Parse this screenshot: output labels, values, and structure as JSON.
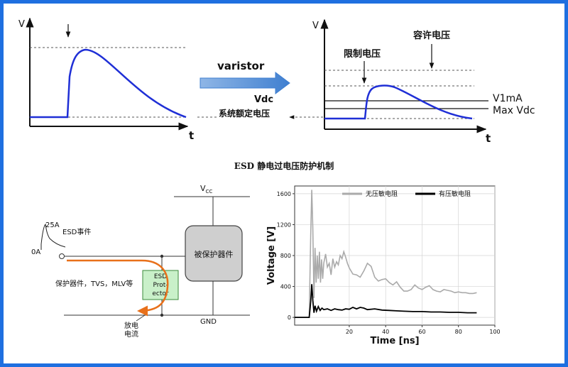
{
  "top_left_plot": {
    "y_axis_label": "V",
    "x_axis_label": "t"
  },
  "transition": {
    "arrow_label": "varistor",
    "vdc_label": "Vdc",
    "rated_voltage_label": "系统额定电压"
  },
  "top_right_plot": {
    "y_axis_label": "V",
    "x_axis_label": "t",
    "allowed_voltage_label": "容许电压",
    "clamp_voltage_label": "限制电压",
    "v1ma_label": "V1mA",
    "max_vdc_label": "Max Vdc"
  },
  "section_title": "ESD 静电过电压防护机制",
  "circuit": {
    "vcc_label": "V",
    "vcc_sub": "CC",
    "gnd_label": "GND",
    "peak_label": "25A",
    "event_label": "ESD事件",
    "zero_label": "0A",
    "protected_device_label": "被保护器件",
    "esd_protector_lines": [
      "ESD",
      "Prot-",
      "ector"
    ],
    "protector_types_label": "保护器件，TVS，MLV等",
    "discharge_lines": [
      "放电",
      "电流"
    ]
  },
  "chart_data": {
    "type": "line",
    "xlabel": "Time [ns]",
    "ylabel": "Voltage [V]",
    "xlim": [
      -10,
      100
    ],
    "ylim": [
      -100,
      1700
    ],
    "xticks": [
      20,
      40,
      60,
      80,
      100
    ],
    "yticks": [
      0,
      400,
      800,
      1200,
      1600
    ],
    "legend_position": "top",
    "series": [
      {
        "name": "无压敏电阻",
        "color": "#aaaaaa",
        "x": [
          -10,
          -2,
          -1.2,
          -0.6,
          0,
          0.6,
          1.2,
          1.8,
          2.4,
          3,
          3.6,
          4.2,
          4.8,
          5.4,
          6,
          7,
          8,
          9,
          10,
          11,
          12,
          13,
          14,
          15,
          16,
          17,
          18,
          19,
          20,
          22,
          24,
          26,
          28,
          30,
          32,
          34,
          36,
          38,
          40,
          42,
          44,
          46,
          48,
          50,
          52,
          54,
          56,
          58,
          60,
          62,
          64,
          66,
          68,
          70,
          72,
          74,
          76,
          78,
          80,
          82,
          84,
          86,
          88,
          90
        ],
        "y": [
          0,
          0,
          1050,
          1650,
          1150,
          250,
          900,
          450,
          800,
          500,
          850,
          450,
          750,
          500,
          700,
          820,
          650,
          700,
          550,
          760,
          650,
          720,
          680,
          800,
          760,
          850,
          780,
          700,
          640,
          560,
          550,
          520,
          600,
          700,
          660,
          520,
          470,
          490,
          500,
          450,
          420,
          460,
          390,
          340,
          340,
          360,
          420,
          380,
          360,
          390,
          410,
          360,
          340,
          330,
          360,
          350,
          340,
          320,
          330,
          320,
          320,
          310,
          310,
          320
        ]
      },
      {
        "name": "有压敏电阻",
        "color": "#000000",
        "x": [
          -10,
          -2,
          -1.2,
          -0.6,
          0,
          0.6,
          1.2,
          2,
          3,
          4,
          5,
          6,
          8,
          10,
          12,
          14,
          16,
          18,
          20,
          22,
          24,
          26,
          28,
          30,
          34,
          38,
          42,
          46,
          50,
          55,
          60,
          65,
          70,
          75,
          80,
          85,
          90
        ],
        "y": [
          0,
          0,
          200,
          430,
          220,
          60,
          150,
          80,
          140,
          90,
          120,
          100,
          110,
          90,
          110,
          100,
          95,
          110,
          105,
          130,
          110,
          130,
          120,
          100,
          110,
          95,
          90,
          85,
          80,
          75,
          75,
          70,
          70,
          65,
          65,
          60,
          60
        ]
      }
    ]
  }
}
